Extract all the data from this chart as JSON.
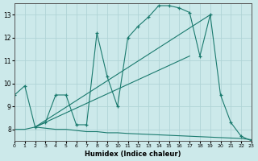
{
  "xlabel": "Humidex (Indice chaleur)",
  "xlim": [
    0,
    23
  ],
  "ylim": [
    7.5,
    13.5
  ],
  "yticks": [
    8,
    9,
    10,
    11,
    12,
    13
  ],
  "xticks": [
    0,
    1,
    2,
    3,
    4,
    5,
    6,
    7,
    8,
    9,
    10,
    11,
    12,
    13,
    14,
    15,
    16,
    17,
    18,
    19,
    20,
    21,
    22,
    23
  ],
  "background_color": "#cce9ea",
  "line_color": "#1a7a6e",
  "grid_color": "#b0d4d6",
  "series_main": {
    "x": [
      0,
      1,
      2,
      3,
      4,
      5,
      6,
      7,
      8,
      9,
      10,
      11,
      12,
      13,
      14,
      15,
      16,
      17,
      18,
      19,
      20,
      21,
      22,
      23
    ],
    "y": [
      9.5,
      9.9,
      8.1,
      8.3,
      9.5,
      9.5,
      8.2,
      8.2,
      12.2,
      10.3,
      9.0,
      12.0,
      12.5,
      12.9,
      13.4,
      13.4,
      13.3,
      13.1,
      11.2,
      13.0,
      9.5,
      8.3,
      7.7,
      7.5
    ]
  },
  "series_line1": {
    "x": [
      2,
      19
    ],
    "y": [
      8.1,
      13.0
    ]
  },
  "series_line2": {
    "x": [
      2,
      17
    ],
    "y": [
      8.1,
      11.2
    ]
  },
  "series_line3": {
    "x": [
      0,
      1,
      2,
      3,
      4,
      5,
      6,
      7,
      8,
      9,
      10,
      11,
      12,
      13,
      14,
      15,
      16,
      17,
      18,
      19,
      20,
      21,
      22,
      23
    ],
    "y": [
      8.0,
      8.0,
      8.1,
      8.05,
      8.0,
      8.0,
      7.95,
      7.9,
      7.9,
      7.85,
      7.85,
      7.82,
      7.8,
      7.78,
      7.76,
      7.74,
      7.72,
      7.7,
      7.68,
      7.66,
      7.64,
      7.62,
      7.6,
      7.55
    ]
  }
}
